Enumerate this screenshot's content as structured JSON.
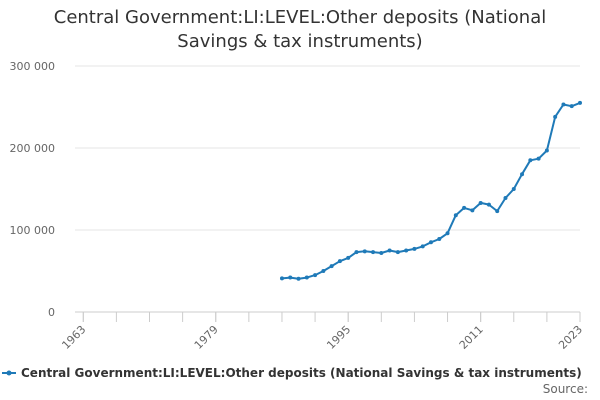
{
  "chart_data": {
    "type": "line",
    "title": "Central Government:LI:LEVEL:Other deposits (National Savings & tax instruments)",
    "title_lines": [
      "Central Government:LI:LEVEL:Other deposits (National",
      "Savings & tax instruments)"
    ],
    "xlabel": "",
    "ylabel": "",
    "xlim": [
      1962,
      2023
    ],
    "ylim": [
      0,
      300000
    ],
    "x_ticks": [
      1963,
      1979,
      1995,
      2011,
      2023
    ],
    "y_ticks": [
      0,
      100000,
      200000,
      300000
    ],
    "y_tick_labels": [
      "0",
      "100 000",
      "200 000",
      "300 000"
    ],
    "grid": "horizontal",
    "legend_position": "bottom",
    "colors": {
      "series": "#1f7ab8",
      "grid": "#e6e6e6",
      "axis": "#cccccc"
    },
    "series": [
      {
        "name": "Central Government:LI:LEVEL:Other deposits (National Savings & tax instruments)",
        "x": [
          1987,
          1988,
          1989,
          1990,
          1991,
          1992,
          1993,
          1994,
          1995,
          1996,
          1997,
          1998,
          1999,
          2000,
          2001,
          2002,
          2003,
          2004,
          2005,
          2006,
          2007,
          2008,
          2009,
          2010,
          2011,
          2012,
          2013,
          2014,
          2015,
          2016,
          2017,
          2018,
          2019,
          2020,
          2021,
          2022,
          2023
        ],
        "values": [
          41000,
          42000,
          40500,
          42000,
          45000,
          50000,
          56000,
          62000,
          66000,
          73000,
          74000,
          73000,
          72000,
          75000,
          73000,
          75000,
          77000,
          80000,
          85000,
          89000,
          96000,
          118000,
          127000,
          124000,
          133000,
          131000,
          123000,
          139000,
          150000,
          168000,
          185000,
          187000,
          197000,
          238000,
          253000,
          251000,
          255000
        ]
      }
    ]
  },
  "source_label": "Source:"
}
